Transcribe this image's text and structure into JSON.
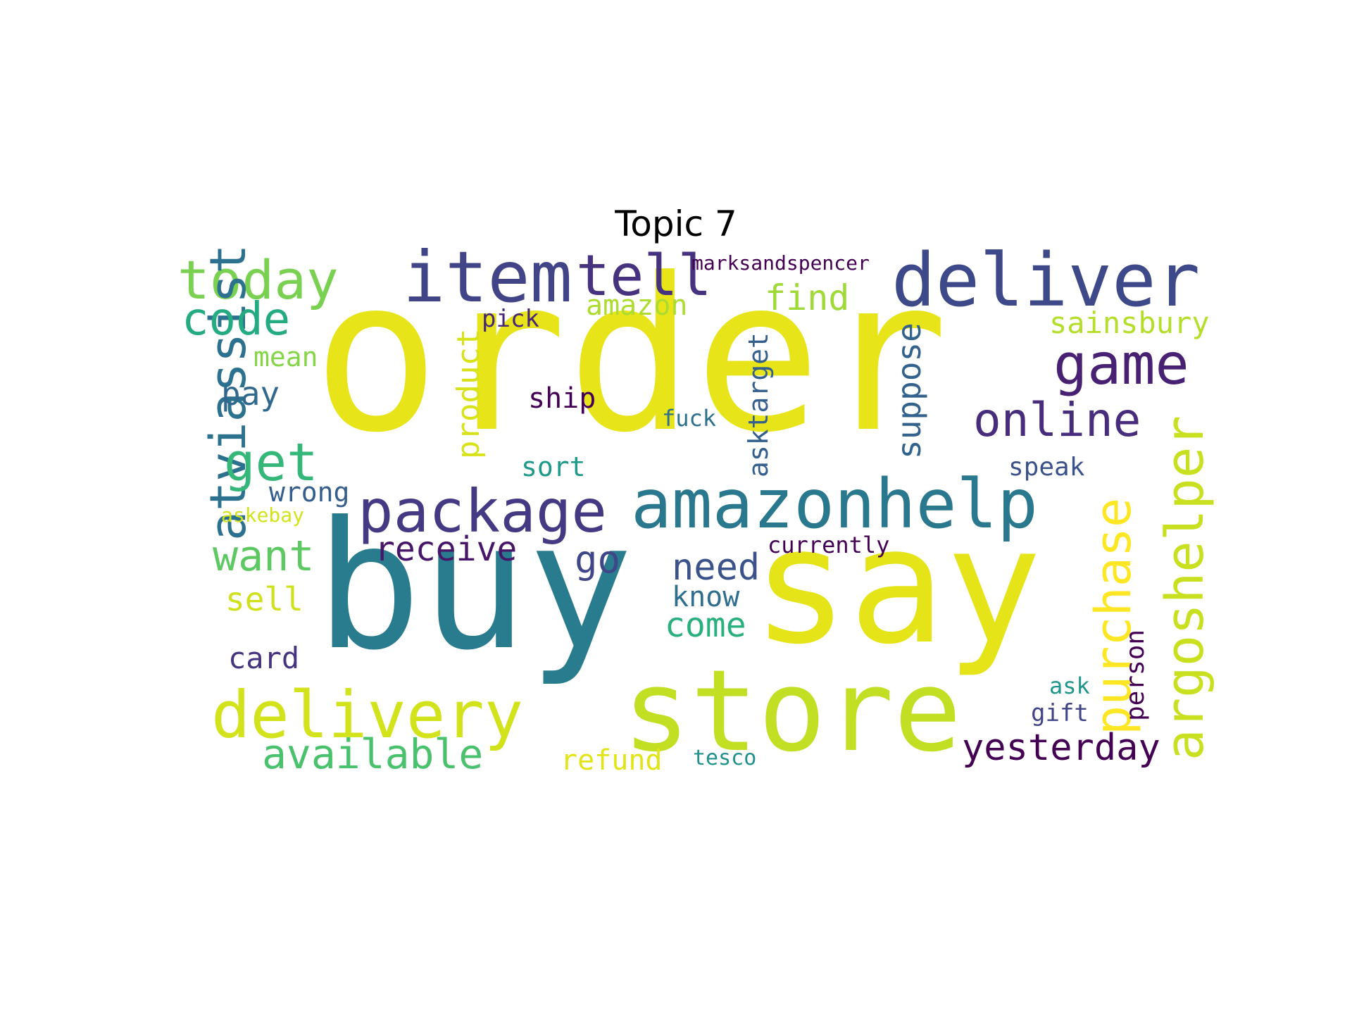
{
  "title": "Topic 7",
  "words": [
    {
      "text": "order",
      "color": "#e7e419"
    },
    {
      "text": "buy",
      "color": "#287c8e"
    },
    {
      "text": "say",
      "color": "#e5e419"
    },
    {
      "text": "store",
      "color": "#c2df23"
    },
    {
      "text": "deliver",
      "color": "#3e4989"
    },
    {
      "text": "amazonhelp",
      "color": "#2a788e"
    },
    {
      "text": "item",
      "color": "#414487"
    },
    {
      "text": "package",
      "color": "#443983"
    },
    {
      "text": "delivery",
      "color": "#d2e21b"
    },
    {
      "text": "today",
      "color": "#7ad151"
    },
    {
      "text": "tell",
      "color": "#46327e"
    },
    {
      "text": "game",
      "color": "#482173"
    },
    {
      "text": "atviassist",
      "color": "#2c728e"
    },
    {
      "text": "argoshelper",
      "color": "#c8e020"
    },
    {
      "text": "purchase",
      "color": "#fde725"
    },
    {
      "text": "online",
      "color": "#472d7b"
    },
    {
      "text": "code",
      "color": "#25ab82"
    },
    {
      "text": "get",
      "color": "#35b779"
    },
    {
      "text": "want",
      "color": "#5ec962"
    },
    {
      "text": "yesterday",
      "color": "#440154"
    },
    {
      "text": "available",
      "color": "#4ac16d"
    },
    {
      "text": "receive",
      "color": "#481668"
    },
    {
      "text": "need",
      "color": "#3b528b"
    },
    {
      "text": "come",
      "color": "#2ab07f"
    },
    {
      "text": "suppose",
      "color": "#33638d"
    },
    {
      "text": "product",
      "color": "#d8e219"
    },
    {
      "text": "find",
      "color": "#a0da39"
    },
    {
      "text": "asktarget",
      "color": "#355f8d"
    },
    {
      "text": "go",
      "color": "#3f4788"
    },
    {
      "text": "sainsbury",
      "color": "#b5de2b"
    },
    {
      "text": "amazon",
      "color": "#addc30"
    },
    {
      "text": "pay",
      "color": "#31688e"
    },
    {
      "text": "sell",
      "color": "#d0e11c"
    },
    {
      "text": "know",
      "color": "#2e6e8e"
    },
    {
      "text": "refund",
      "color": "#e2e418"
    },
    {
      "text": "card",
      "color": "#463480"
    },
    {
      "text": "person",
      "color": "#440154"
    },
    {
      "text": "mean",
      "color": "#86d549"
    },
    {
      "text": "ship",
      "color": "#440154"
    },
    {
      "text": "sort",
      "color": "#1f9a8a"
    },
    {
      "text": "wrong",
      "color": "#355e8d"
    },
    {
      "text": "currently",
      "color": "#440154"
    },
    {
      "text": "speak",
      "color": "#3b518b"
    },
    {
      "text": "marksandspencer",
      "color": "#440154"
    },
    {
      "text": "pick",
      "color": "#482677"
    },
    {
      "text": "fuck",
      "color": "#2d708e"
    },
    {
      "text": "gift",
      "color": "#414487"
    },
    {
      "text": "ask",
      "color": "#1f968b"
    },
    {
      "text": "tesco",
      "color": "#21918c"
    },
    {
      "text": "askebay",
      "color": "#d2e21b"
    }
  ]
}
